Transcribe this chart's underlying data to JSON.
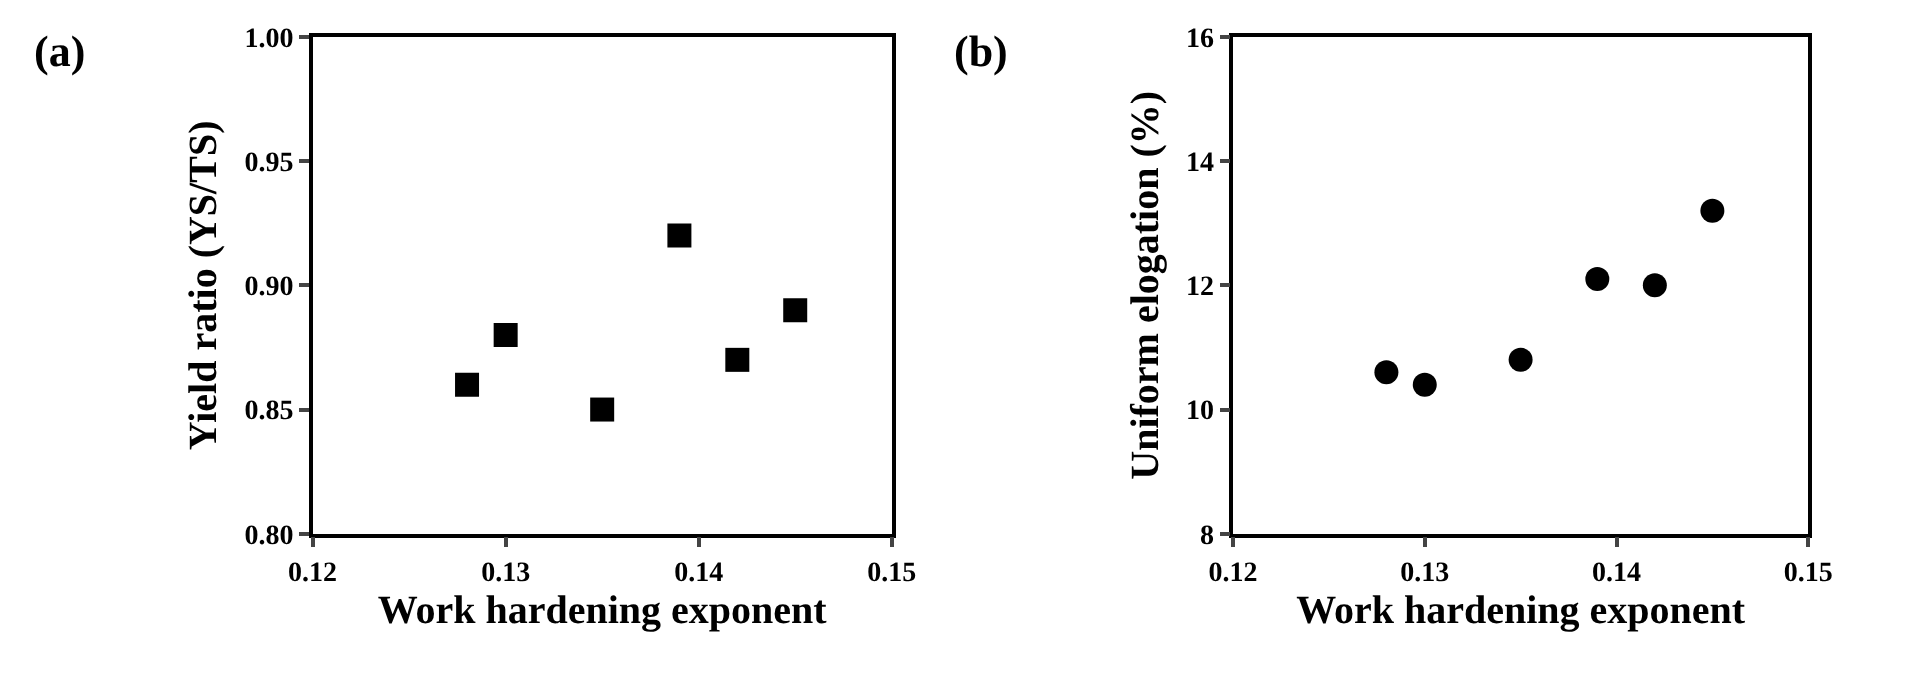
{
  "chart_data": [
    {
      "type": "scatter",
      "title": "(a)",
      "xlabel": "Work hardening exponent",
      "ylabel": "Yield ratio (YS/TS)",
      "x": [
        0.128,
        0.13,
        0.135,
        0.139,
        0.142,
        0.145
      ],
      "series": [
        {
          "color": "#000000",
          "values": [
            0.86,
            0.88,
            0.85,
            0.92,
            0.87,
            0.89
          ]
        }
      ],
      "marker": "square",
      "xlim": [
        0.12,
        0.15
      ],
      "xticks": [
        0.12,
        0.13,
        0.14,
        0.15
      ],
      "ylim": [
        0.8,
        1.0
      ],
      "yticks": [
        {
          "value": 0.8,
          "label": "0.80"
        },
        {
          "value": 0.85,
          "label": "0.85"
        },
        {
          "value": 0.9,
          "label": "0.90"
        },
        {
          "value": 0.95,
          "label": "0.95"
        },
        {
          "value": 1.0,
          "label": "1.00"
        }
      ]
    },
    {
      "type": "scatter",
      "title": "(b)",
      "xlabel": "Work hardening exponent",
      "ylabel": "Uniform elogation (%)",
      "x": [
        0.128,
        0.13,
        0.135,
        0.139,
        0.142,
        0.145
      ],
      "series": [
        {
          "color": "#000000",
          "values": [
            10.6,
            10.4,
            10.8,
            12.1,
            12.0,
            13.2
          ]
        }
      ],
      "marker": "circle",
      "xlim": [
        0.12,
        0.15
      ],
      "xticks": [
        0.12,
        0.13,
        0.14,
        0.15
      ],
      "ylim": [
        8,
        16
      ],
      "yticks": [
        8,
        10,
        12,
        14,
        16
      ]
    }
  ]
}
